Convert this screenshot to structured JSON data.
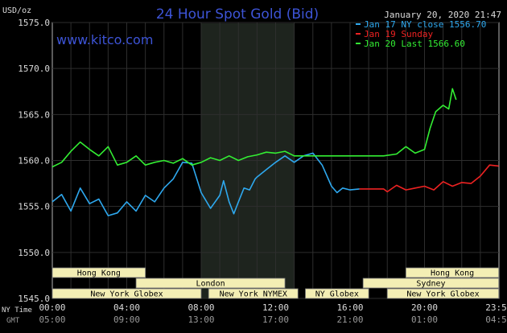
{
  "chart_data": {
    "type": "line",
    "title": "24 Hour Spot Gold (Bid)",
    "ylabel": "USD/oz",
    "timestamp": "January 20, 2020 21:47",
    "watermark": "www.kitco.com",
    "ylim": [
      1545.0,
      1575.0
    ],
    "y_ticks": [
      "1575.0",
      "1570.0",
      "1565.0",
      "1560.0",
      "1555.0",
      "1550.0",
      "1545.0"
    ],
    "x_row_labels": [
      "NY Time",
      "GMT"
    ],
    "x_ticks_ny": [
      "00:00",
      "04:00",
      "08:00",
      "12:00",
      "16:00",
      "20:00",
      "23:59"
    ],
    "x_ticks_gmt": [
      "05:00",
      "09:00",
      "13:00",
      "17:00",
      "21:00",
      "01:00",
      "04:59"
    ],
    "colors": {
      "background": "#000000",
      "plot_border": "#b4b4b4",
      "grid": "#2e2e2e",
      "shaded_session": "#1e241e",
      "title": "#3d54d6",
      "watermark": "#3d54d6",
      "text": "#dcdcdc",
      "market_box_fill": "#f3eeb4",
      "market_box_text": "#000000"
    },
    "series": [
      {
        "name": "Jan 17 NY close 1556.70",
        "color": "#2ea8ee",
        "x": [
          0,
          0.5,
          1,
          1.5,
          2,
          2.5,
          3,
          3.5,
          4,
          4.5,
          5,
          5.5,
          6,
          6.5,
          7,
          7.5,
          8,
          8.5,
          9,
          9.2,
          9.5,
          9.75,
          10,
          10.3,
          10.6,
          10.9,
          11,
          11.5,
          12,
          12.5,
          13,
          13.5,
          14,
          14.5,
          15,
          15.3,
          15.6,
          16,
          16.5
        ],
        "y": [
          1555.5,
          1556.3,
          1554.5,
          1557.0,
          1555.3,
          1555.8,
          1554.0,
          1554.3,
          1555.5,
          1554.5,
          1556.2,
          1555.5,
          1557.0,
          1558.0,
          1559.8,
          1559.7,
          1556.5,
          1554.8,
          1556.2,
          1557.8,
          1555.5,
          1554.2,
          1555.5,
          1557.0,
          1556.8,
          1558.0,
          1558.2,
          1559.0,
          1559.8,
          1560.5,
          1559.8,
          1560.5,
          1560.8,
          1559.5,
          1557.2,
          1556.5,
          1557.0,
          1556.8,
          1556.9
        ]
      },
      {
        "name": "Jan 19 Sunday",
        "color": "#ee2222",
        "x": [
          16.5,
          17.8,
          18.0,
          18.5,
          19.0,
          19.5,
          20.0,
          20.5,
          21.0,
          21.5,
          22.0,
          22.5,
          23.0,
          23.5,
          23.99
        ],
        "y": [
          1556.9,
          1556.9,
          1556.6,
          1557.3,
          1556.8,
          1557.0,
          1557.2,
          1556.8,
          1557.7,
          1557.2,
          1557.6,
          1557.5,
          1558.3,
          1559.5,
          1559.4
        ]
      },
      {
        "name": "Jan 20 Last 1566.60",
        "color": "#33ee33",
        "x": [
          0,
          0.5,
          1,
          1.5,
          2,
          2.5,
          3,
          3.5,
          4,
          4.5,
          5,
          5.5,
          6,
          6.5,
          7,
          7.5,
          8,
          8.5,
          9,
          9.5,
          10,
          10.5,
          11,
          11.5,
          12,
          12.5,
          13,
          13.5,
          14,
          15,
          16,
          17,
          17.8,
          18.5,
          19,
          19.5,
          20,
          20.3,
          20.6,
          21.0,
          21.3,
          21.5,
          21.7
        ],
        "y": [
          1559.3,
          1559.8,
          1561.0,
          1562.0,
          1561.2,
          1560.5,
          1561.5,
          1559.5,
          1559.8,
          1560.5,
          1559.5,
          1559.8,
          1560.0,
          1559.7,
          1560.2,
          1559.5,
          1559.8,
          1560.3,
          1560.0,
          1560.5,
          1560.0,
          1560.4,
          1560.6,
          1560.9,
          1560.8,
          1561.0,
          1560.5,
          1560.5,
          1560.5,
          1560.5,
          1560.5,
          1560.5,
          1560.5,
          1560.7,
          1561.5,
          1560.8,
          1561.2,
          1563.5,
          1565.3,
          1566.0,
          1565.6,
          1567.8,
          1566.6
        ]
      }
    ],
    "sessions": [
      {
        "label": "Hong Kong",
        "start": 0.0,
        "end": 5.0,
        "row": 0
      },
      {
        "label": "London",
        "start": 4.5,
        "end": 12.5,
        "row": 1
      },
      {
        "label": "New York Globex",
        "start": 0.0,
        "end": 8.0,
        "row": 2
      },
      {
        "label": "New York NYMEX",
        "start": 8.4,
        "end": 13.2,
        "row": 2
      },
      {
        "label": "NY Globex",
        "start": 13.6,
        "end": 17.0,
        "row": 2
      },
      {
        "label": "Hong Kong",
        "start": 19.0,
        "end": 23.99,
        "row": 0
      },
      {
        "label": "Sydney",
        "start": 16.7,
        "end": 23.99,
        "row": 1
      },
      {
        "label": "New York Globex",
        "start": 18.0,
        "end": 23.99,
        "row": 2
      }
    ],
    "shaded_range": [
      8.0,
      13.0
    ],
    "grid": true,
    "legend_position": "top-right"
  }
}
